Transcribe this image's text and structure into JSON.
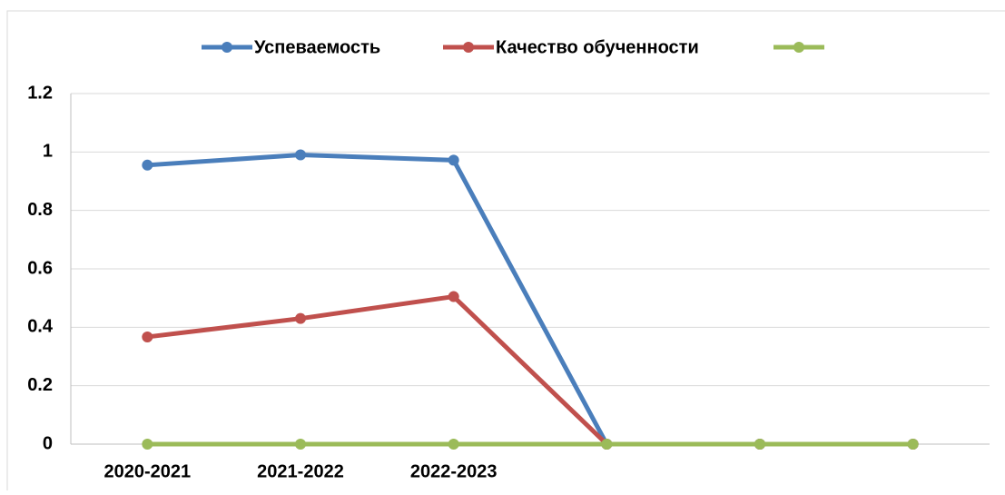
{
  "chart_data": {
    "type": "line",
    "categories": [
      "2020-2021",
      "2021-2022",
      "2022-2023",
      null,
      null,
      null
    ],
    "series": [
      {
        "name": "Успеваемость",
        "color": "#4a7ebb",
        "values": [
          0.955,
          0.99,
          0.972,
          0,
          0,
          0
        ]
      },
      {
        "name": "Качество обученности",
        "color": "#c0504d",
        "values": [
          0.367,
          0.43,
          0.505,
          0,
          0,
          0
        ]
      },
      {
        "color": "#9bbb59",
        "values": [
          0,
          0,
          0,
          0,
          0,
          0
        ]
      }
    ],
    "ylim": [
      0,
      1.2
    ],
    "yticks": [
      0,
      0.2,
      0.4,
      0.6,
      0.8,
      1,
      1.2
    ],
    "grid": true,
    "legend": "top"
  }
}
